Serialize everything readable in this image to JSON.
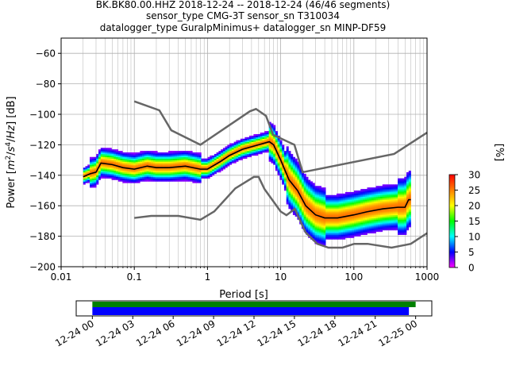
{
  "title_lines": [
    "BK.BK80.00.HHZ   2018-12-24 -- 2018-12-24  (46/46 segments)",
    "sensor_type CMG-3T sensor_sn T310034",
    "datalogger_type GuralpMinimus+ datalogger_sn MINP-DF59"
  ],
  "colors": {
    "nlnm_nhnm": "#666666",
    "mode_line": "#000000",
    "grid": "#b0b0b0",
    "timeline_green": "#008000",
    "timeline_blue": "#0000ff"
  },
  "chart_data": [
    {
      "type": "heatmap",
      "subtype": "probabilistic power spectral density",
      "xlabel": "Period [s]",
      "ylabel": "Power [m²/s⁴/Hz] [dB]",
      "xscale": "log",
      "xlim": [
        0.01,
        1000
      ],
      "ylim": [
        -200,
        -50
      ],
      "xticks": [
        0.01,
        0.1,
        1,
        10,
        100,
        1000
      ],
      "xtick_labels": [
        "0.01",
        "0.1",
        "1",
        "10",
        "100",
        "1000"
      ],
      "yticks": [
        -200,
        -180,
        -160,
        -140,
        -120,
        -100,
        -80,
        -60
      ],
      "ytick_labels": [
        "−200",
        "−180",
        "−160",
        "−140",
        "−120",
        "−100",
        "−80",
        "−60"
      ],
      "grid": true,
      "colorbar": {
        "label": "[%]",
        "min": 0,
        "max": 30,
        "ticks": [
          0,
          5,
          10,
          15,
          20,
          25,
          30
        ],
        "tick_labels": [
          "0",
          "5",
          "10",
          "15",
          "20",
          "25",
          "30"
        ],
        "colormap": [
          "#ff00ff",
          "#0000ff",
          "#00ffff",
          "#00ff00",
          "#ffff00",
          "#ff8000",
          "#ff0000"
        ]
      },
      "nhnm": {
        "period": [
          0.1,
          0.22,
          0.32,
          0.8,
          3.8,
          4.6,
          6.3,
          7.9,
          15.4,
          20,
          354.8,
          1000
        ],
        "power": [
          -91.5,
          -97.4,
          -110.5,
          -120,
          -98,
          -96.5,
          -101,
          -113.5,
          -120,
          -138,
          -126,
          -112
        ]
      },
      "nlnm": {
        "period": [
          0.1,
          0.17,
          0.4,
          0.8,
          1.24,
          2.4,
          4.3,
          5,
          6,
          10,
          12,
          15.6,
          21.9,
          31.6,
          45,
          70,
          101,
          154,
          328,
          600,
          1000
        ],
        "power": [
          -168,
          -166.7,
          -166.7,
          -169.2,
          -163.7,
          -148.6,
          -141.1,
          -141.1,
          -149,
          -163.8,
          -166.2,
          -162.1,
          -177.5,
          -185,
          -187.5,
          -187.5,
          -185,
          -185,
          -187.5,
          -185,
          -178
        ]
      },
      "mode": {
        "period": [
          0.02,
          0.025,
          0.03,
          0.035,
          0.05,
          0.07,
          0.1,
          0.15,
          0.2,
          0.3,
          0.5,
          0.8,
          1.0,
          1.5,
          2,
          3,
          5,
          7,
          8,
          10,
          13,
          17,
          22,
          30,
          40,
          60,
          100,
          150,
          250,
          400,
          500,
          560,
          600
        ],
        "power": [
          -141,
          -139,
          -138,
          -132,
          -133,
          -135,
          -136,
          -134,
          -135,
          -135,
          -134,
          -136,
          -136,
          -131,
          -127,
          -123,
          -120,
          -118,
          -120,
          -130,
          -143,
          -150,
          -160,
          -166,
          -168,
          -168,
          -166,
          -164,
          -162,
          -161,
          -161,
          -156,
          -156
        ]
      }
    },
    {
      "type": "timeline",
      "xtick_labels": [
        "12-24 00",
        "12-24 03",
        "12-24 06",
        "12-24 09",
        "12-24 12",
        "12-24 15",
        "12-24 18",
        "12-24 21",
        "12-25 00"
      ],
      "x_hours": [
        0,
        3,
        6,
        9,
        12,
        15,
        18,
        21,
        24
      ],
      "xlim_hours": [
        -1.2,
        25.2
      ],
      "green_bar_hours": [
        0,
        24
      ],
      "blue_bar_hours": [
        0,
        23.5
      ]
    }
  ]
}
